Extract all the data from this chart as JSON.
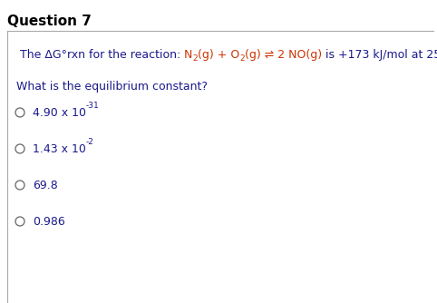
{
  "title": "Question 7",
  "title_fontsize": 11,
  "title_fontweight": "bold",
  "title_color": "#000000",
  "bg_color": "#ffffff",
  "border_color": "#aaaaaa",
  "question_text_color": "#1a1a8c",
  "question_label": "What is the equilibrium constant?",
  "question_label_fontsize": 9,
  "reaction_fontsize": 9,
  "blue_color": "#1a1a8c",
  "red_color": "#cc3300",
  "options": [
    [
      "4.90 x 10",
      "-31"
    ],
    [
      "1.43 x 10",
      "-2"
    ],
    [
      "69.8",
      ""
    ],
    [
      "0.986",
      ""
    ]
  ],
  "option_color": "#1a1a8c",
  "option_fontsize": 9,
  "circle_color": "#666666"
}
